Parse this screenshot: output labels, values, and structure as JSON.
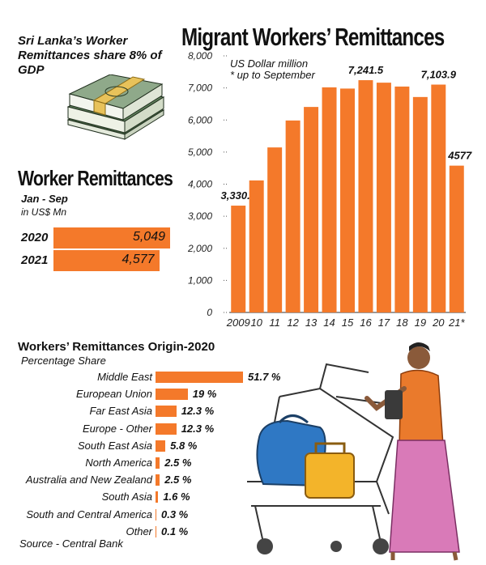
{
  "share_note": "Sri Lanka’s Worker Remittances share 8% of GDP",
  "worker_remittances": {
    "title": "Worker Remittances",
    "subtitle": "Jan - Sep",
    "unit": "in US$ Mn",
    "rows": [
      {
        "year": "2020",
        "value": 5049,
        "label": "5,049"
      },
      {
        "year": "2021",
        "value": 4577,
        "label": "4,577"
      }
    ]
  },
  "main_title": "Migrant Workers’ Remittances",
  "unit_note": "US Dollar million",
  "footnote": "* up to September",
  "origin": {
    "title": "Workers’ Remittances Origin-2020",
    "subtitle": "Percentage Share"
  },
  "source": "Source - Central Bank",
  "colors": {
    "bar": "#F4792A",
    "axis": "#333333"
  },
  "chart_data": [
    {
      "type": "bar",
      "title": "Migrant Workers’ Remittances",
      "ylabel": "US Dollar million",
      "categories": [
        "2009",
        "10",
        "11",
        "12",
        "13",
        "14",
        "15",
        "16",
        "17",
        "18",
        "19",
        "20",
        "21*"
      ],
      "values": [
        3330.3,
        4116,
        5145,
        5985,
        6407,
        7018,
        6980,
        7241.5,
        7164,
        7043,
        6717,
        7103.9,
        4577
      ],
      "data_labels": {
        "0": "3,330.3",
        "7": "7,241.5",
        "11": "7,103.9",
        "12": "4577"
      },
      "ylim": [
        0,
        8000
      ],
      "yticks": [
        "0",
        "1,000",
        "2,000",
        "3,000",
        "4,000",
        "5,000",
        "6,000",
        "7,000",
        "8,000"
      ],
      "grid": false
    },
    {
      "type": "bar",
      "orientation": "horizontal",
      "title": "Workers’ Remittances Origin-2020",
      "xlabel": "Percentage Share",
      "categories": [
        "Middle East",
        "European Union",
        "Far East Asia",
        "Europe - Other",
        "South East Asia",
        "North America",
        "Australia and New Zealand",
        "South Asia",
        "South and Central America",
        "Other"
      ],
      "values": [
        51.7,
        19,
        12.3,
        12.3,
        5.8,
        2.5,
        2.5,
        1.6,
        0.3,
        0.1
      ],
      "labels": [
        "51.7 %",
        "19 %",
        "12.3 %",
        "12.3 %",
        "5.8 %",
        "2.5 %",
        "2.5 %",
        "1.6 %",
        "0.3 %",
        "0.1 %"
      ]
    }
  ]
}
